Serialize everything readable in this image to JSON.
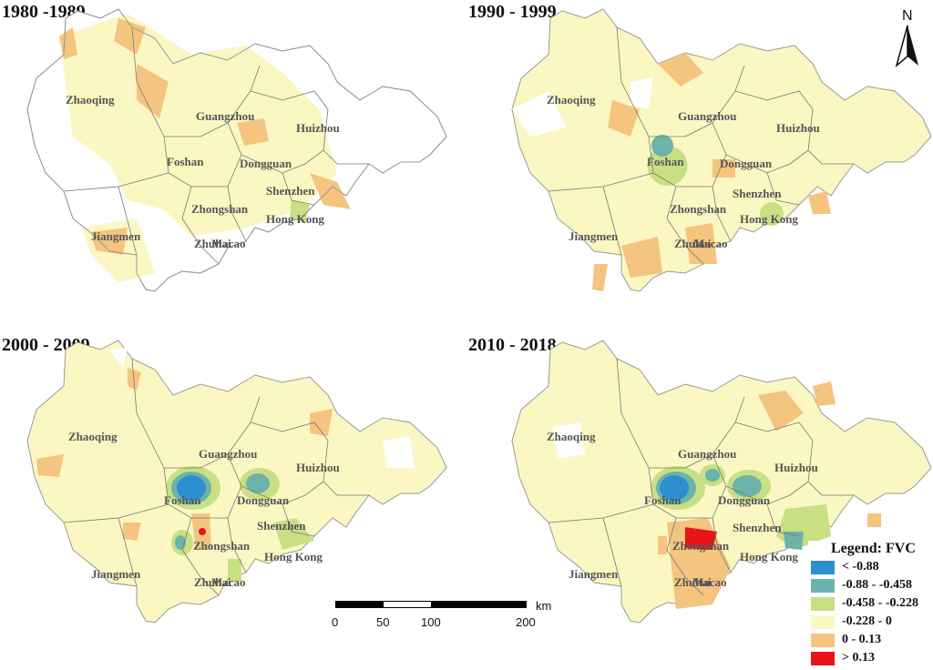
{
  "panels": [
    {
      "title": "1980 -1989"
    },
    {
      "title": "1990 - 1999"
    },
    {
      "title": "2000 - 2009"
    },
    {
      "title": "2010 - 2018"
    }
  ],
  "cities": {
    "zhaoqing": "Zhaoqing",
    "guangzhou": "Guangzhou",
    "huizhou": "Huizhou",
    "foshan": "Foshan",
    "dongguan": "Dongguan",
    "shenzhen": "Shenzhen",
    "zhongshan": "Zhongshan",
    "hongkong": "Hong Kong",
    "jiangmen": "Jiangmen",
    "zhuhai": "Zhuhai",
    "macao": "Macao"
  },
  "legend": {
    "title": "Legend: FVC",
    "items": [
      {
        "label": "< -0.88",
        "color": "#2e8fce"
      },
      {
        "label": "-0.88 - -0.458",
        "color": "#6bb3ab"
      },
      {
        "label": "-0.458 - -0.228",
        "color": "#c9df84"
      },
      {
        "label": "-0.228 - 0",
        "color": "#fbf7c2"
      },
      {
        "label": "0 - 0.13",
        "color": "#f5c47f"
      },
      {
        "label": "> 0.13",
        "color": "#e8141a"
      }
    ]
  },
  "scale": {
    "unit": "km",
    "ticks": [
      "0",
      "50",
      "100",
      "200"
    ]
  },
  "north": {
    "label": "N"
  }
}
